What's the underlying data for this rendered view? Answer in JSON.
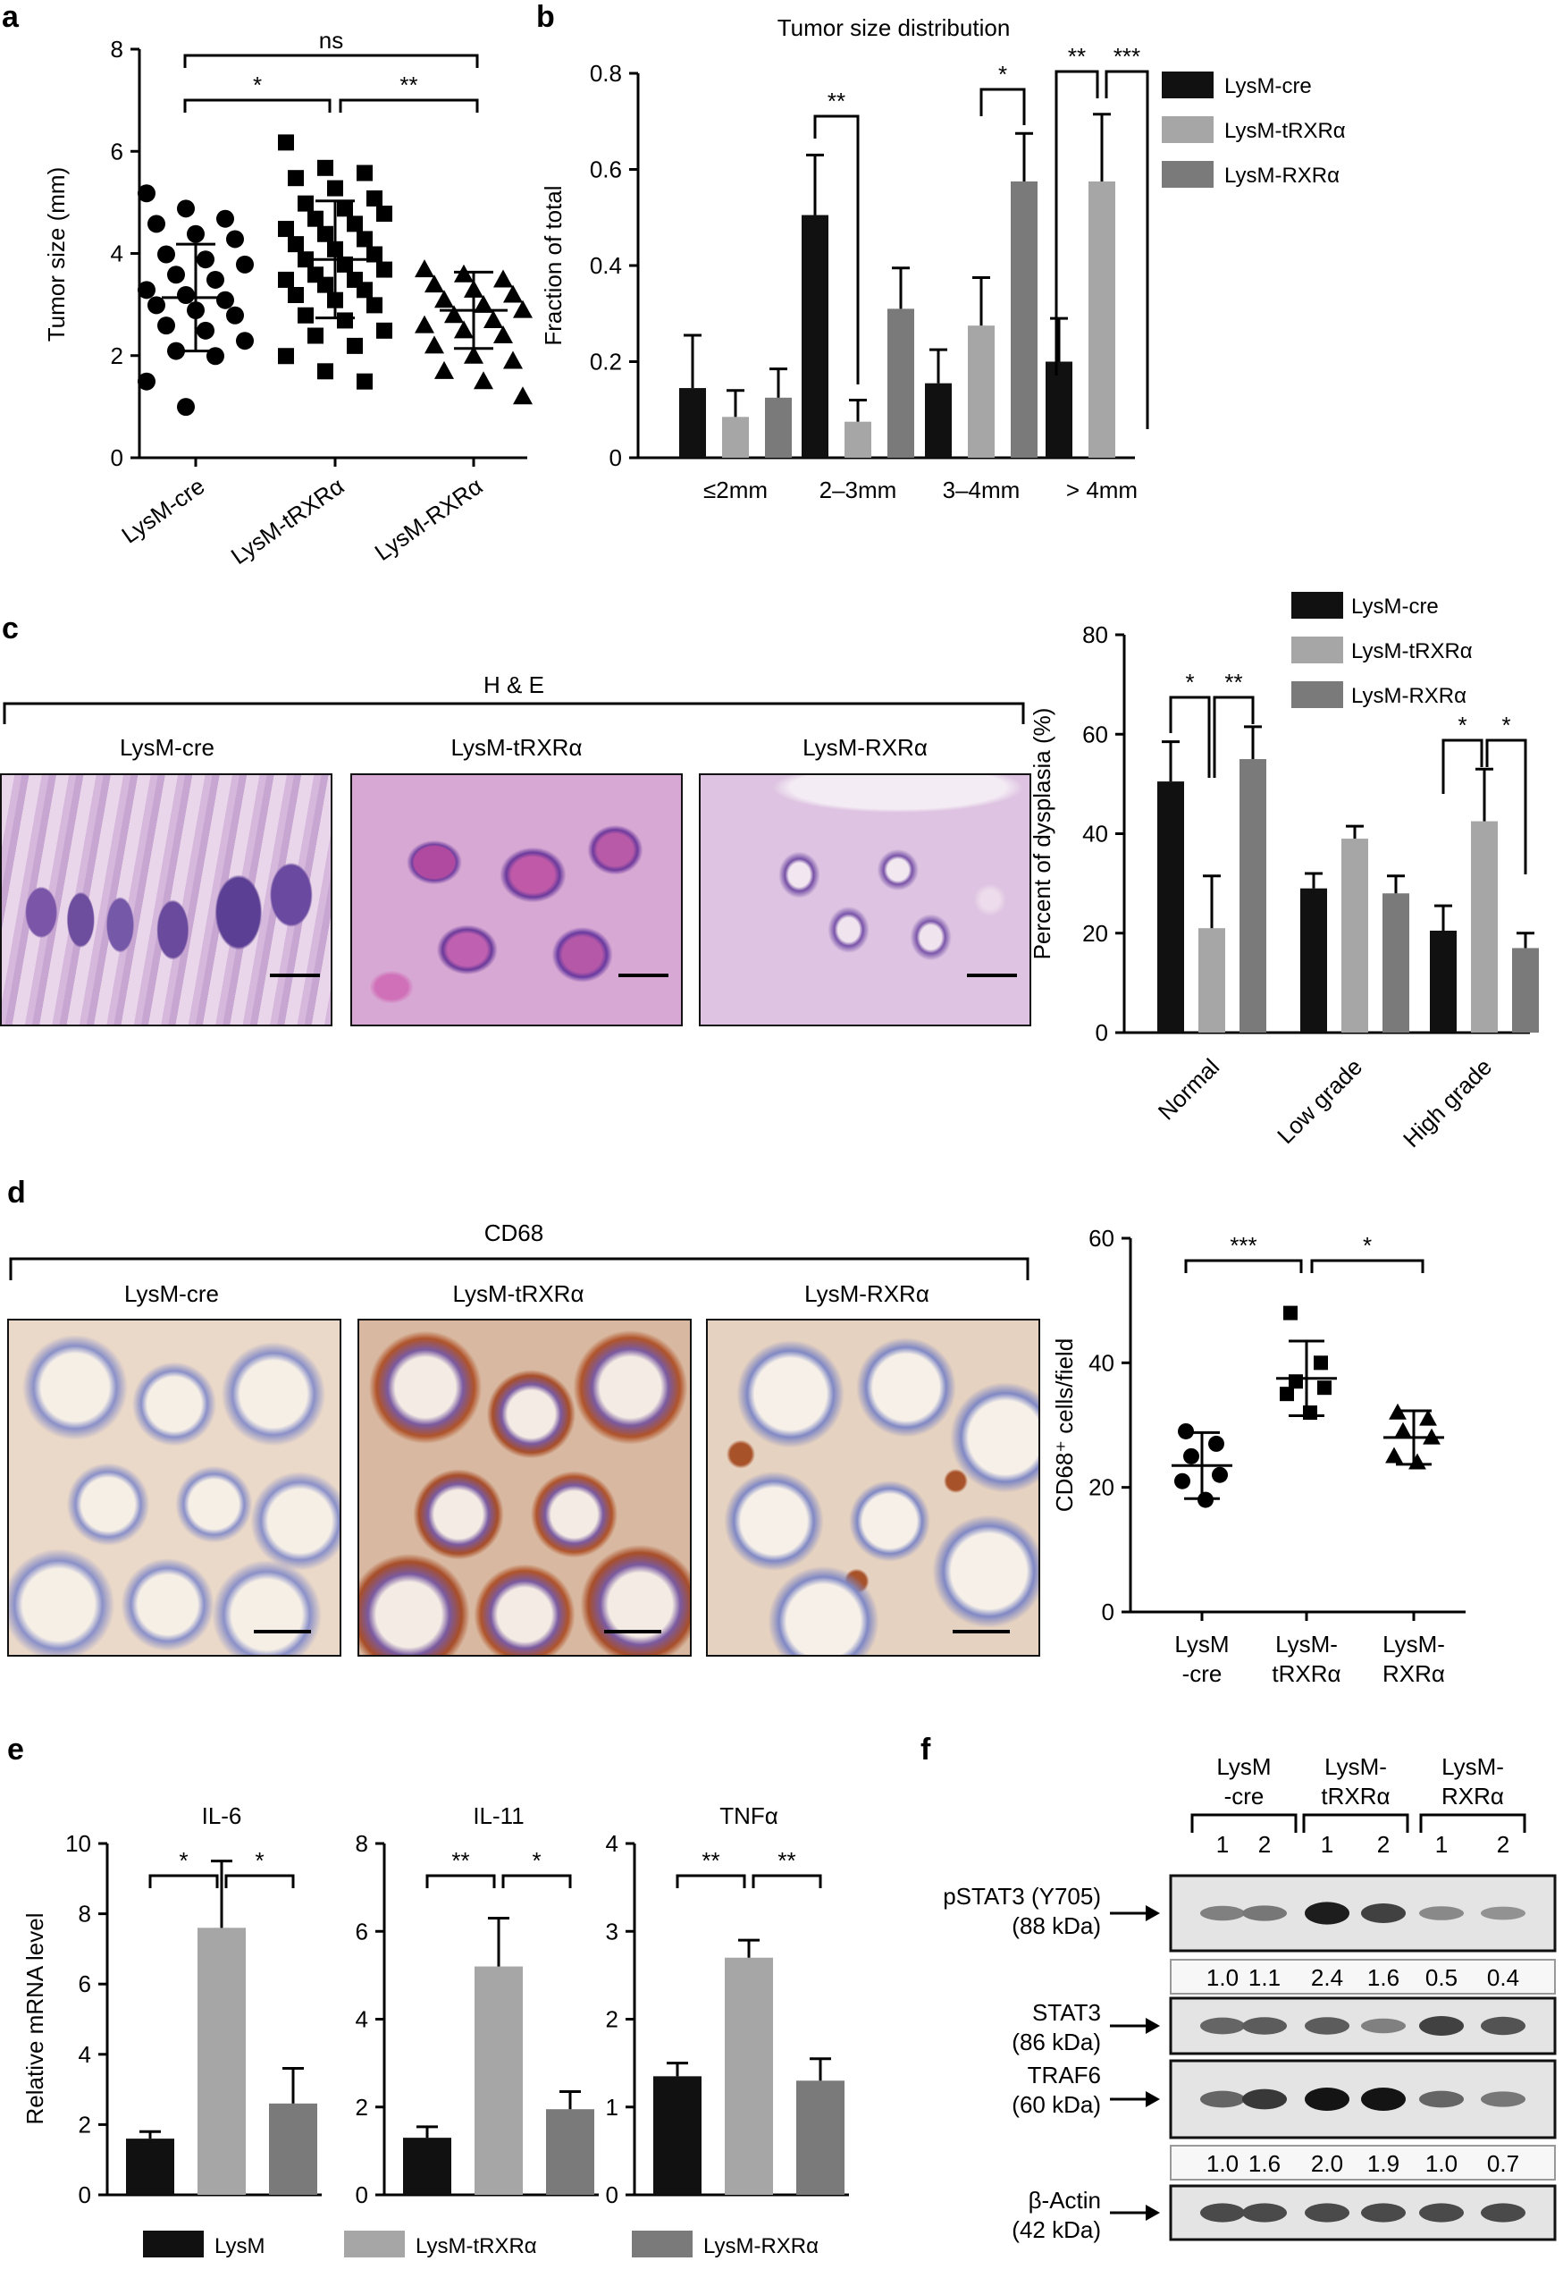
{
  "panel_letters": [
    "a",
    "b",
    "c",
    "d",
    "e",
    "f"
  ],
  "colors": {
    "black": "#111111",
    "light_gray": "#a6a6a6",
    "dark_gray": "#7a7a7a"
  },
  "chart_data": [
    {
      "id": "a",
      "type": "scatter",
      "ylabel": "Tumor size (mm)",
      "ylim": [
        0,
        8
      ],
      "yticks": [
        0,
        2,
        4,
        6,
        8
      ],
      "categories": [
        "LysM-cre",
        "LysM-tRXRα",
        "LysM-RXRα"
      ],
      "markers": [
        "circle",
        "square",
        "triangle"
      ],
      "means": [
        3.15,
        3.9,
        2.9
      ],
      "sds": [
        1.05,
        1.15,
        0.75
      ],
      "points": [
        [
          5.2,
          4.9,
          4.7,
          4.6,
          4.4,
          4.3,
          4.0,
          3.9,
          3.8,
          3.6,
          3.5,
          3.3,
          3.2,
          3.1,
          3.0,
          2.9,
          2.8,
          2.6,
          2.5,
          2.3,
          2.1,
          2.0,
          1.5,
          1.0
        ],
        [
          6.2,
          5.7,
          5.6,
          5.5,
          5.3,
          5.1,
          5.0,
          4.9,
          4.8,
          4.7,
          4.6,
          4.5,
          4.4,
          4.3,
          4.2,
          4.1,
          4.0,
          3.9,
          3.8,
          3.7,
          3.6,
          3.5,
          3.5,
          3.4,
          3.3,
          3.2,
          3.1,
          3.0,
          2.8,
          2.7,
          2.5,
          2.4,
          2.2,
          2.0,
          1.7,
          1.5
        ],
        [
          3.7,
          3.6,
          3.5,
          3.4,
          3.3,
          3.2,
          3.1,
          3.0,
          2.9,
          2.8,
          2.7,
          2.6,
          2.5,
          2.4,
          2.2,
          2.0,
          1.9,
          1.7,
          1.5,
          1.2
        ]
      ],
      "brackets": [
        {
          "from": 0,
          "to": 1,
          "label": "*"
        },
        {
          "from": 1,
          "to": 2,
          "label": "**"
        },
        {
          "from": 0,
          "to": 2,
          "label": "ns"
        }
      ]
    },
    {
      "id": "b",
      "type": "bar",
      "title": "Tumor size distribution",
      "ylabel": "Fraction of total",
      "ylim": [
        0,
        0.8
      ],
      "yticks": [
        "0",
        "0.2",
        "0.4",
        "0.6",
        "0.8"
      ],
      "categories": [
        "≤2mm",
        "2–3mm",
        "3–4mm",
        "> 4mm"
      ],
      "series": [
        {
          "name": "LysM-cre",
          "color": "#111111",
          "values": [
            0.145,
            0.505,
            0.155,
            0.2
          ],
          "errors": [
            0.11,
            0.125,
            0.07,
            0.09
          ]
        },
        {
          "name": "LysM-tRXRα",
          "color": "#a6a6a6",
          "values": [
            0.085,
            0.075,
            0.275,
            0.575
          ],
          "errors": [
            0.055,
            0.045,
            0.1,
            0.14
          ]
        },
        {
          "name": "LysM-RXRα",
          "color": "#7a7a7a",
          "values": [
            0.125,
            0.31,
            0.575,
            0.0
          ],
          "errors": [
            0.06,
            0.085,
            0.1,
            0.0
          ]
        }
      ],
      "brackets": [
        {
          "cat": 1,
          "label": "**"
        },
        {
          "cat": 2,
          "label": "*"
        },
        {
          "cat": 3,
          "label": "**"
        },
        {
          "cat": 3,
          "label": "***"
        }
      ]
    },
    {
      "id": "c",
      "type": "bar",
      "ylabel": "Percent of dysplasia (%)",
      "ylim": [
        0,
        80
      ],
      "yticks": [
        0,
        20,
        40,
        60,
        80
      ],
      "categories": [
        "Normal",
        "Low grade",
        "High grade"
      ],
      "series": [
        {
          "name": "LysM-cre",
          "color": "#111111",
          "values": [
            50.5,
            29,
            20.5
          ],
          "errors": [
            8,
            3,
            5
          ]
        },
        {
          "name": "LysM-tRXRα",
          "color": "#a6a6a6",
          "values": [
            21,
            39,
            42.5
          ],
          "errors": [
            10.5,
            2.5,
            10.5
          ]
        },
        {
          "name": "LysM-RXRα",
          "color": "#7a7a7a",
          "values": [
            55,
            28,
            17
          ],
          "errors": [
            6.5,
            3.5,
            3
          ]
        }
      ],
      "brackets": [
        {
          "cat": 0,
          "label": "*"
        },
        {
          "cat": 0,
          "label": "**"
        },
        {
          "cat": 2,
          "label": "*"
        },
        {
          "cat": 2,
          "label": "*"
        }
      ]
    },
    {
      "id": "d",
      "type": "scatter",
      "ylabel_html": "CD68⁺ cells/field",
      "ylim": [
        0,
        60
      ],
      "yticks": [
        0,
        20,
        40,
        60
      ],
      "categories": [
        [
          "LysM",
          "-cre"
        ],
        [
          "LysM-",
          "tRXRα"
        ],
        [
          "LysM-",
          "RXRα"
        ]
      ],
      "markers": [
        "circle",
        "square",
        "triangle"
      ],
      "means": [
        23.5,
        37.5,
        28
      ],
      "sds": [
        5.3,
        6,
        4.3
      ],
      "points": [
        [
          29,
          27,
          25,
          22,
          21,
          18
        ],
        [
          48,
          40,
          37,
          36,
          35,
          32
        ],
        [
          32,
          31,
          29,
          28,
          25,
          24
        ]
      ],
      "brackets": [
        {
          "from": 0,
          "to": 1,
          "label": "***"
        },
        {
          "from": 1,
          "to": 2,
          "label": "*"
        }
      ]
    },
    {
      "id": "e",
      "type": "bar",
      "ylabel": "Relative mRNA level",
      "subcharts": [
        {
          "title": "IL-6",
          "ylim": [
            0,
            10
          ],
          "yticks": [
            0,
            2,
            4,
            6,
            8,
            10
          ],
          "values": [
            1.6,
            7.6,
            2.6
          ],
          "errors": [
            0.2,
            1.9,
            1.0
          ],
          "brackets": [
            "*",
            "*"
          ]
        },
        {
          "title": "IL-11",
          "ylim": [
            0,
            8
          ],
          "yticks": [
            0,
            2,
            4,
            6,
            8
          ],
          "values": [
            1.3,
            5.2,
            1.95
          ],
          "errors": [
            0.25,
            1.1,
            0.4
          ],
          "brackets": [
            "**",
            "*"
          ]
        },
        {
          "title": "TNFα",
          "ylim": [
            0,
            4
          ],
          "yticks": [
            0,
            1,
            2,
            3,
            4
          ],
          "values": [
            1.35,
            2.7,
            1.3
          ],
          "errors": [
            0.15,
            0.2,
            0.25
          ],
          "brackets": [
            "**",
            "**"
          ]
        }
      ],
      "legend": [
        "LysM",
        "LysM-tRXRα",
        "LysM-RXRα"
      ]
    }
  ],
  "panel_c": {
    "stain_label": "H & E",
    "images": [
      "LysM-cre",
      "LysM-tRXRα",
      "LysM-RXRα"
    ]
  },
  "panel_d": {
    "stain_label": "CD68",
    "images": [
      "LysM-cre",
      "LysM-tRXRα",
      "LysM-RXRα"
    ]
  },
  "western_blot": {
    "groups": [
      [
        "LysM",
        "-cre"
      ],
      [
        "LysM-",
        "tRXRα"
      ],
      [
        "LysM-",
        "RXRα"
      ]
    ],
    "lanes": [
      "1",
      "2",
      "1",
      "2",
      "1",
      "2"
    ],
    "rows": [
      {
        "label": [
          "pSTAT3 (Y705)",
          "(88 kDa)"
        ],
        "intensity": [
          0.4,
          0.45,
          0.95,
          0.75,
          0.35,
          0.3
        ]
      },
      {
        "label": [
          "STAT3",
          "(86 kDa)"
        ],
        "intensity": [
          0.55,
          0.6,
          0.6,
          0.4,
          0.75,
          0.65
        ]
      },
      {
        "label": [
          "TRAF6",
          "(60 kDa)"
        ],
        "intensity": [
          0.55,
          0.8,
          1.0,
          1.0,
          0.55,
          0.45
        ]
      },
      {
        "label": [
          "β-Actin",
          "(42 kDa)"
        ],
        "intensity": [
          0.7,
          0.7,
          0.7,
          0.7,
          0.7,
          0.7
        ]
      }
    ],
    "quant_pstat3": [
      "1.0",
      "1.1",
      "2.4",
      "1.6",
      "0.5",
      "0.4"
    ],
    "quant_traf6": [
      "1.0",
      "1.6",
      "2.0",
      "1.9",
      "1.0",
      "0.7"
    ]
  }
}
